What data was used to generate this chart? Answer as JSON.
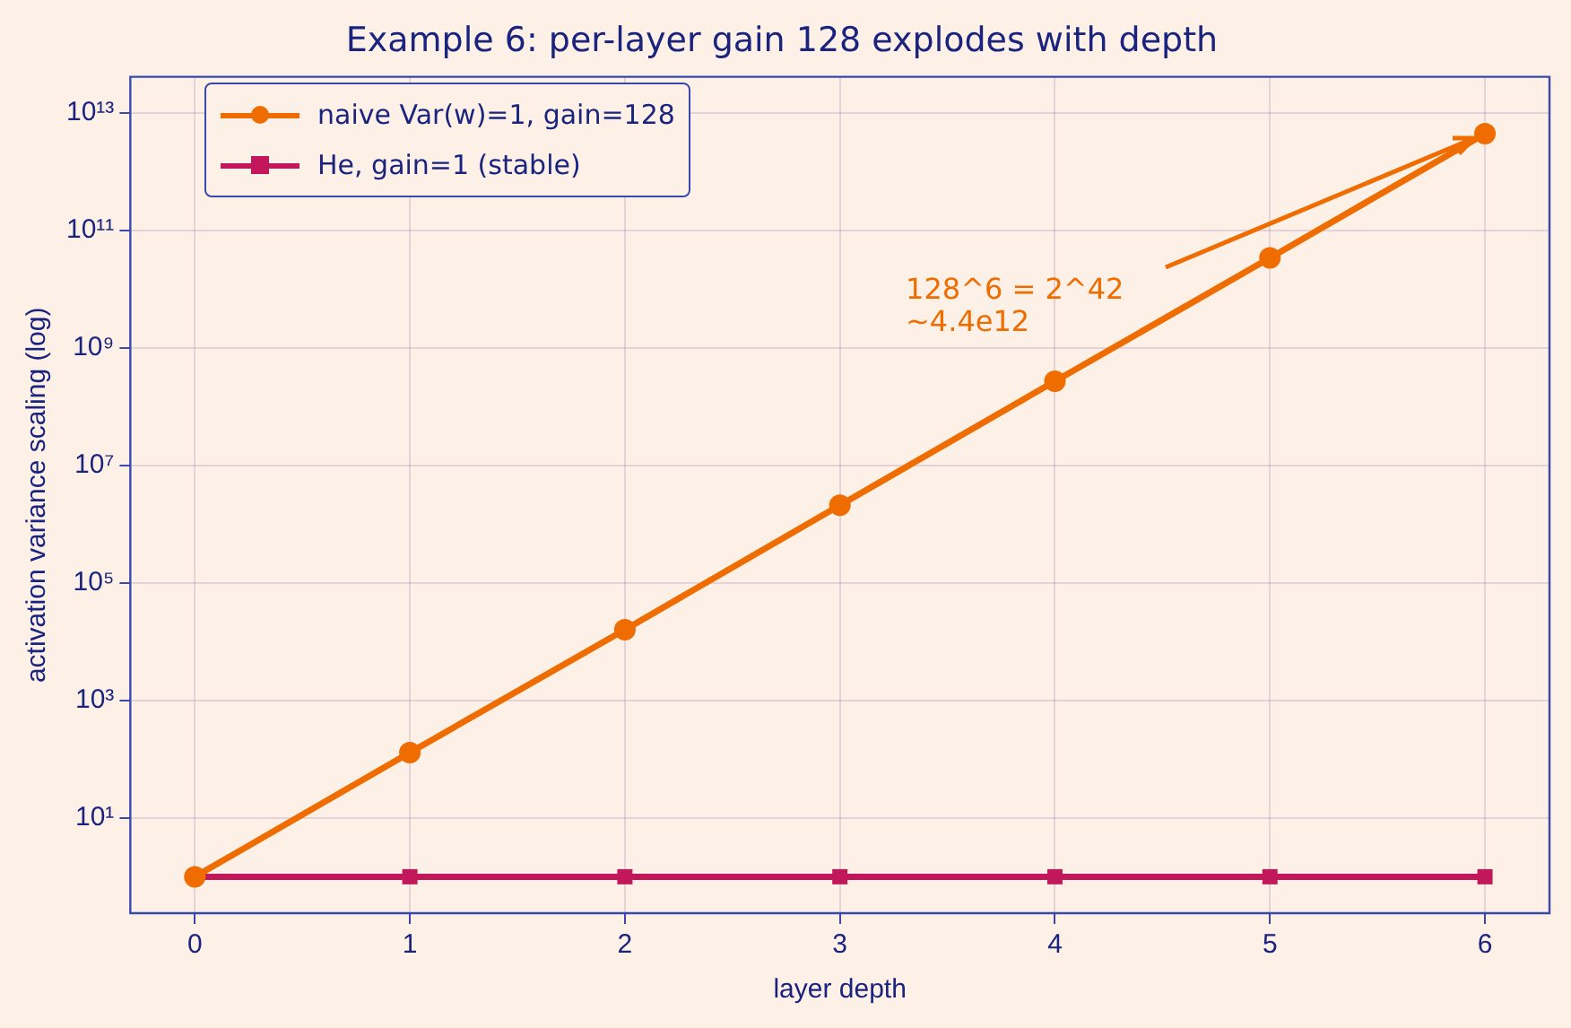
{
  "chart_data": {
    "type": "line",
    "title": "Example 6: per-layer gain 128 explodes with depth",
    "xlabel": "layer depth",
    "ylabel": "activation variance scaling (log)",
    "x": [
      0,
      1,
      2,
      3,
      4,
      5,
      6
    ],
    "series": [
      {
        "name": "naive Var(w)=1, gain=128",
        "color": "#ef6c00",
        "marker": "circle",
        "values": [
          1,
          130,
          16000,
          2100000,
          270000000,
          34000000000,
          4400000000000
        ]
      },
      {
        "name": "He, gain=1 (stable)",
        "color": "#c2185b",
        "marker": "square",
        "values": [
          1,
          1,
          1,
          1,
          1,
          1,
          1
        ]
      }
    ],
    "log": "y",
    "xlim": [
      -0.3,
      6.3
    ],
    "ylim": [
      0.24,
      41000000000000
    ],
    "xticks": [
      0,
      1,
      2,
      3,
      4,
      5,
      6
    ],
    "yticks": [
      {
        "value": 10,
        "label": "10¹"
      },
      {
        "value": 1000,
        "label": "10³"
      },
      {
        "value": 100000,
        "label": "10⁵"
      },
      {
        "value": 10000000,
        "label": "10⁷"
      },
      {
        "value": 1000000000,
        "label": "10⁹"
      },
      {
        "value": 100000000000,
        "label": "10¹¹"
      },
      {
        "value": 10000000000000,
        "label": "10¹³"
      }
    ],
    "grid": true,
    "legend": "top left",
    "line_style": "solid",
    "annotations": [
      "128^6 = 2^42\n~4.4e12"
    ]
  }
}
